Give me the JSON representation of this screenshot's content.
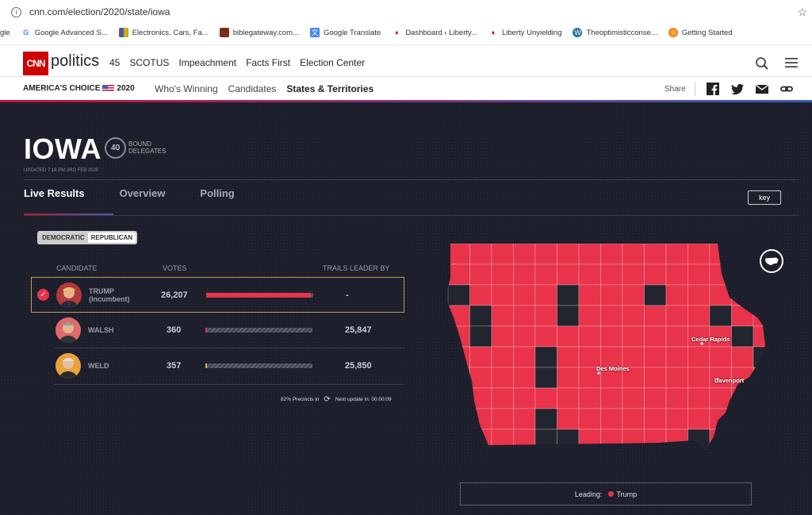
{
  "browser": {
    "url": "cnn.com/election/2020/state/iowa",
    "bookmarks": [
      "gle",
      "Google Advanced S...",
      "Electronics, Cars, Fa...",
      "biblegateway.com...",
      "Google Translate",
      "Dashboard ‹ Liberty...",
      "Liberty Unyielding",
      "Theoptimisticconse...",
      "Getting Started"
    ]
  },
  "header": {
    "logo": "CNN",
    "section": "politics",
    "nav": [
      "45",
      "SCOTUS",
      "Impeachment",
      "Facts First",
      "Election Center"
    ]
  },
  "subheader": {
    "americas_choice": "AMERICA'S CHOICE",
    "year": "2020",
    "nav": [
      "Who's Winning",
      "Candidates",
      "States & Territories"
    ],
    "share": "Share"
  },
  "state": {
    "name": "IOWA",
    "delegates": "40",
    "delegates_label_1": "BOUND",
    "delegates_label_2": "DELEGATES",
    "updated": "UPDATED 7:16 PM 3RD FEB 2020"
  },
  "tabs": [
    "Live Results",
    "Overview",
    "Polling"
  ],
  "key_button": "key",
  "party_toggle": [
    "DEMOCRATIC",
    "REPUBLICAN"
  ],
  "columns": {
    "candidate": "CANDIDATE",
    "votes": "VOTES",
    "trails": "TRAILS LEADER BY"
  },
  "candidates": [
    {
      "name": "TRUMP",
      "sub": "(Incumbent)",
      "votes": "26,207",
      "trails": "-",
      "share": 0.981,
      "color": "#e8334a"
    },
    {
      "name": "WALSH",
      "sub": "",
      "votes": "360",
      "trails": "25,847",
      "share": 0.013,
      "color": "#e8334a"
    },
    {
      "name": "WELD",
      "sub": "",
      "votes": "357",
      "trails": "25,850",
      "share": 0.013,
      "color": "#e8a33d"
    }
  ],
  "precincts": {
    "text": "82% Precincts in",
    "next": "Next update in: 00:00:09"
  },
  "map": {
    "cities": [
      "Cedar Rapids",
      "Des Moines",
      "Davenport"
    ],
    "leading_color": "#e8334a",
    "other_color": "#22252f"
  },
  "legend": {
    "label": "Leading:",
    "candidate": "Trump"
  }
}
